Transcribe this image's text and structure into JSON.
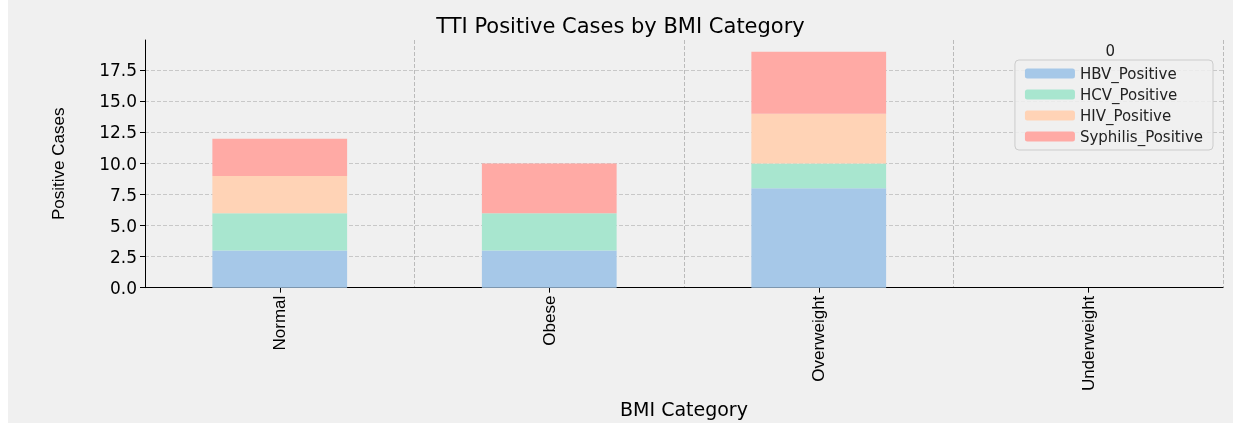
{
  "chart_data": {
    "type": "bar",
    "title": "TTI Positive Cases by BMI Category",
    "xlabel": "BMI Category",
    "ylabel": "Positive Cases",
    "legend_title": "0",
    "categories": [
      "Normal",
      "Obese",
      "Overweight",
      "Underweight"
    ],
    "stacked": true,
    "series": [
      {
        "name": "HBV_Positive",
        "color": "#a6c8e8",
        "values": [
          3,
          3,
          8,
          0
        ]
      },
      {
        "name": "HCV_Positive",
        "color": "#a8e6cf",
        "values": [
          3,
          3,
          2,
          0
        ]
      },
      {
        "name": "HIV_Positive",
        "color": "#ffd3b6",
        "values": [
          3,
          0,
          4,
          0
        ]
      },
      {
        "name": "Syphilis_Positive",
        "color": "#ffaaa5",
        "values": [
          3,
          4,
          5,
          0
        ]
      }
    ],
    "ylim": [
      0,
      19.95
    ],
    "yticks": [
      {
        "value": 0,
        "label": "0.0"
      },
      2.5,
      {
        "value": 5,
        "label": "5.0"
      },
      7.5,
      {
        "value": 10,
        "label": "10.0"
      },
      12.5,
      {
        "value": 15,
        "label": "15.0"
      },
      17.5
    ],
    "grid": true,
    "legend": "top right"
  }
}
